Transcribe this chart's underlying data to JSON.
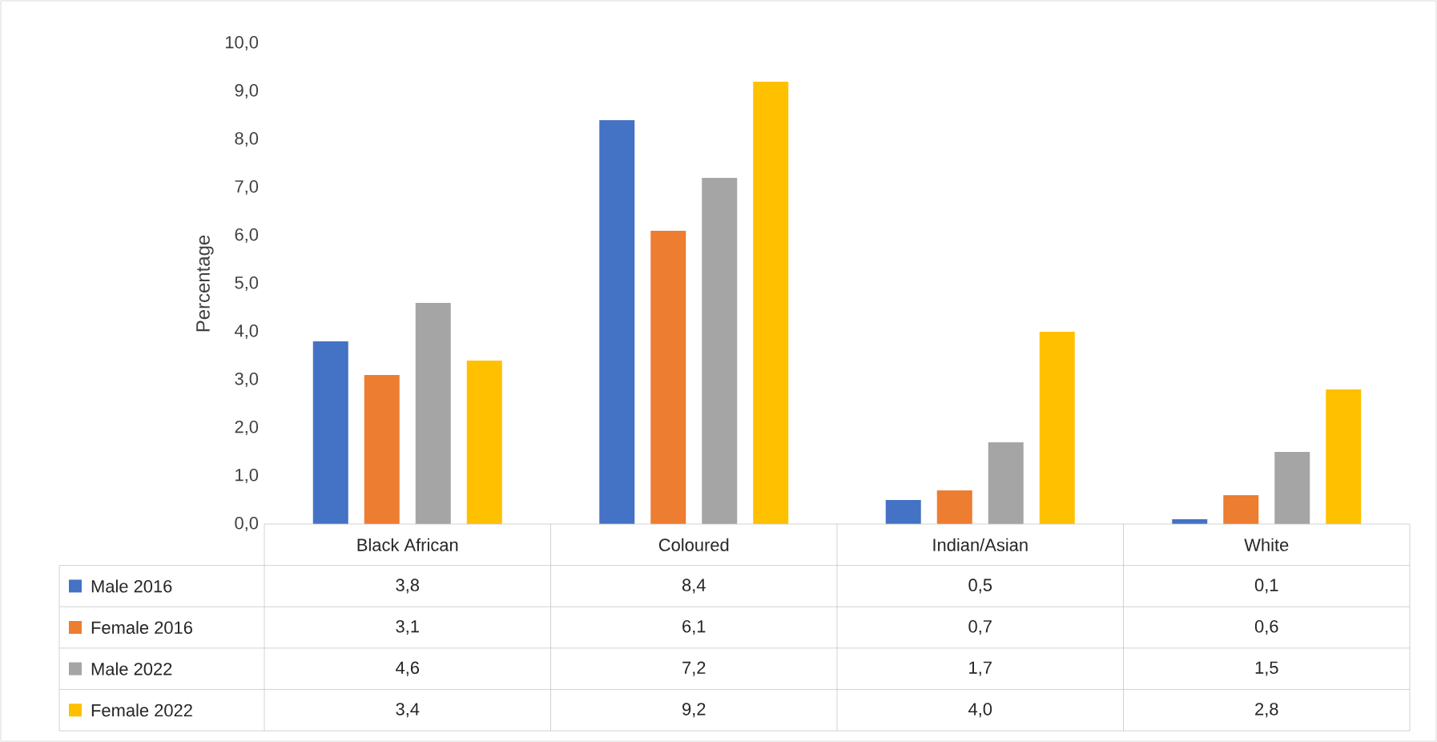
{
  "chart_data": {
    "type": "bar",
    "ylabel": "Percentage",
    "categories": [
      "Black African",
      "Coloured",
      "Indian/Asian",
      "White"
    ],
    "series": [
      {
        "name": "Male 2016",
        "color": "#4472c4",
        "values": [
          3.8,
          8.4,
          0.5,
          0.1
        ],
        "value_labels": [
          "3,8",
          "8,4",
          "0,5",
          "0,1"
        ]
      },
      {
        "name": "Female 2016",
        "color": "#ed7d31",
        "values": [
          3.1,
          6.1,
          0.7,
          0.6
        ],
        "value_labels": [
          "3,1",
          "6,1",
          "0,7",
          "0,6"
        ]
      },
      {
        "name": "Male 2022",
        "color": "#a5a5a5",
        "values": [
          4.6,
          7.2,
          1.7,
          1.5
        ],
        "value_labels": [
          "4,6",
          "7,2",
          "1,7",
          "1,5"
        ]
      },
      {
        "name": "Female 2022",
        "color": "#ffc000",
        "values": [
          3.4,
          9.2,
          4.0,
          2.8
        ],
        "value_labels": [
          "3,4",
          "9,2",
          "4,0",
          "2,8"
        ]
      }
    ],
    "ylim": [
      0,
      10
    ],
    "yticks": [
      {
        "value": 0,
        "label": "0,0"
      },
      {
        "value": 1,
        "label": "1,0"
      },
      {
        "value": 2,
        "label": "2,0"
      },
      {
        "value": 3,
        "label": "3,0"
      },
      {
        "value": 4,
        "label": "4,0"
      },
      {
        "value": 5,
        "label": "5,0"
      },
      {
        "value": 6,
        "label": "6,0"
      },
      {
        "value": 7,
        "label": "7,0"
      },
      {
        "value": 8,
        "label": "8,0"
      },
      {
        "value": 9,
        "label": "9,0"
      },
      {
        "value": 10,
        "label": "10,0"
      }
    ],
    "grid": false,
    "legend": "bottom left"
  }
}
